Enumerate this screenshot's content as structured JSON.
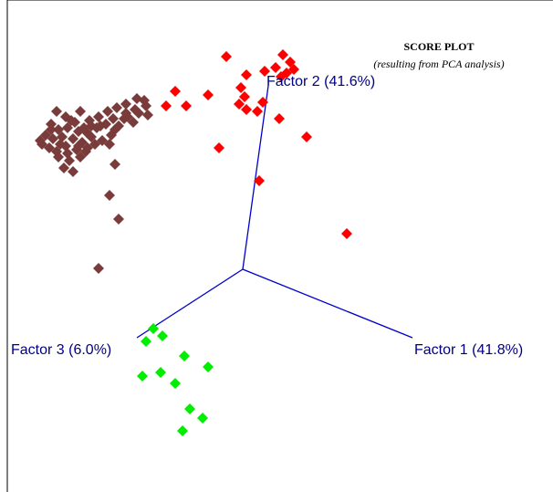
{
  "chart_data": {
    "type": "scatter",
    "title": "SCORE PLOT",
    "subtitle": "(resulting from PCA analysis)",
    "grid": false,
    "legend": "none",
    "axes": [
      {
        "name": "Factor 1 (41.8%)",
        "color": "#0000cc"
      },
      {
        "name": "Factor 2 (41.6%)",
        "color": "#0000cc"
      },
      {
        "name": "Factor 3 (6.0%)",
        "color": "#0000cc"
      }
    ],
    "series": [
      {
        "color": "#ff0000",
        "points": [
          [
            248,
            62
          ],
          [
            310,
            60
          ],
          [
            318,
            68
          ],
          [
            302,
            74
          ],
          [
            314,
            80
          ],
          [
            322,
            76
          ],
          [
            308,
            84
          ],
          [
            290,
            78
          ],
          [
            270,
            82
          ],
          [
            264,
            96
          ],
          [
            268,
            106
          ],
          [
            262,
            114
          ],
          [
            270,
            120
          ],
          [
            282,
            122
          ],
          [
            288,
            112
          ],
          [
            306,
            130
          ],
          [
            336,
            150
          ],
          [
            228,
            104
          ],
          [
            204,
            116
          ],
          [
            192,
            100
          ],
          [
            182,
            116
          ],
          [
            240,
            162
          ],
          [
            284,
            198
          ],
          [
            380,
            256
          ]
        ]
      },
      {
        "color": "#7a3b3b",
        "points": [
          [
            62,
            122
          ],
          [
            72,
            128
          ],
          [
            82,
            134
          ],
          [
            88,
            122
          ],
          [
            98,
            132
          ],
          [
            108,
            128
          ],
          [
            118,
            122
          ],
          [
            128,
            118
          ],
          [
            138,
            124
          ],
          [
            148,
            120
          ],
          [
            158,
            110
          ],
          [
            162,
            126
          ],
          [
            56,
            136
          ],
          [
            64,
            142
          ],
          [
            74,
            140
          ],
          [
            86,
            144
          ],
          [
            96,
            146
          ],
          [
            106,
            140
          ],
          [
            116,
            136
          ],
          [
            126,
            142
          ],
          [
            136,
            130
          ],
          [
            146,
            134
          ],
          [
            152,
            124
          ],
          [
            50,
            148
          ],
          [
            58,
            152
          ],
          [
            68,
            150
          ],
          [
            80,
            152
          ],
          [
            90,
            156
          ],
          [
            100,
            150
          ],
          [
            112,
            154
          ],
          [
            122,
            148
          ],
          [
            130,
            138
          ],
          [
            140,
            128
          ],
          [
            46,
            158
          ],
          [
            54,
            162
          ],
          [
            62,
            166
          ],
          [
            72,
            160
          ],
          [
            84,
            164
          ],
          [
            94,
            166
          ],
          [
            104,
            158
          ],
          [
            120,
            158
          ],
          [
            64,
            172
          ],
          [
            76,
            176
          ],
          [
            88,
            172
          ],
          [
            70,
            184
          ],
          [
            80,
            188
          ],
          [
            126,
            180
          ],
          [
            120,
            214
          ],
          [
            130,
            240
          ],
          [
            108,
            294
          ],
          [
            160,
            116
          ],
          [
            150,
            108
          ],
          [
            110,
            138
          ],
          [
            78,
            132
          ],
          [
            66,
            158
          ],
          [
            96,
            162
          ],
          [
            86,
            160
          ],
          [
            74,
            168
          ],
          [
            56,
            142
          ],
          [
            44,
            154
          ],
          [
            138,
            114
          ],
          [
            124,
            130
          ],
          [
            100,
            138
          ],
          [
            92,
            140
          ]
        ]
      },
      {
        "color": "#00ee00",
        "points": [
          [
            168,
            360
          ],
          [
            178,
            368
          ],
          [
            160,
            374
          ],
          [
            202,
            390
          ],
          [
            228,
            402
          ],
          [
            176,
            408
          ],
          [
            156,
            412
          ],
          [
            192,
            420
          ],
          [
            208,
            448
          ],
          [
            222,
            458
          ],
          [
            200,
            472
          ]
        ]
      }
    ]
  }
}
